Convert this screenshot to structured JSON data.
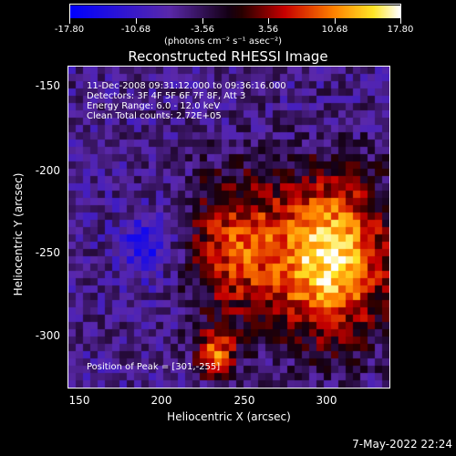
{
  "colorbar": {
    "tick_labels": [
      "-17.80",
      "-10.68",
      "-3.56",
      "3.56",
      "10.68",
      "17.80"
    ],
    "units_text": "(photons cm⁻² s⁻¹ asec⁻²)"
  },
  "title": "Reconstructed RHESSI Image",
  "info": {
    "line1": "11-Dec-2008 09:31:12.000 to 09:36:16.000",
    "line2": "Detectors: 3F 4F 5F 6F 7F 8F, Att 3",
    "line3": "Energy Range: 6.0 - 12.0 keV",
    "line4": "Clean     Total counts: 2.72E+05",
    "peak": "Position of Peak = [301,-255]"
  },
  "axes": {
    "xlabel": "Heliocentric X (arcsec)",
    "ylabel": "Heliocentric Y (arcsec)",
    "xticks": [
      "150",
      "200",
      "250",
      "300"
    ],
    "yticks": [
      "-150",
      "-200",
      "-250",
      "-300"
    ]
  },
  "timestamp": "7-May-2022 22:24"
}
